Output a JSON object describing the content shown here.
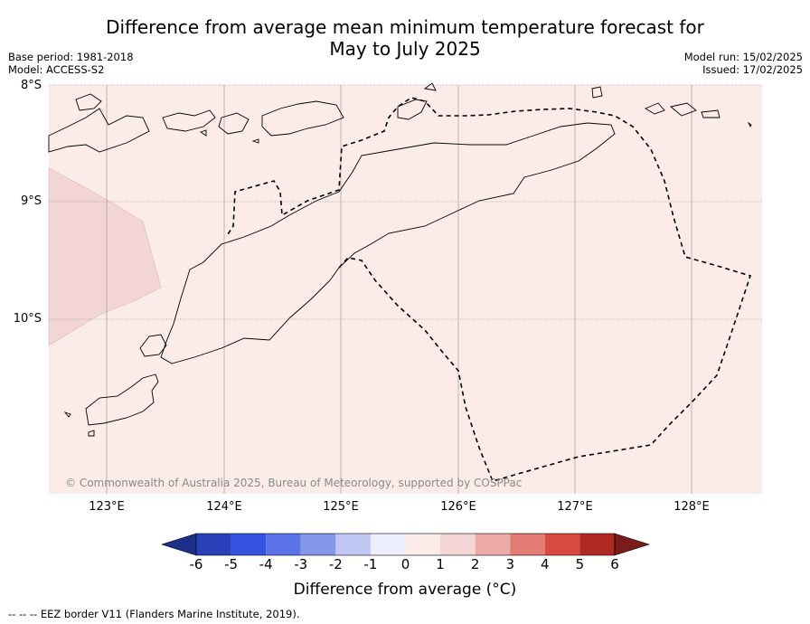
{
  "title": {
    "line1": "Difference from average mean minimum temperature forecast for",
    "line2": "May to July 2025"
  },
  "meta": {
    "base_period": "Base period: 1981-2018",
    "model": "Model: ACCESS-S2",
    "model_run": "Model run: 15/02/2025",
    "issued": "Issued: 17/02/2025"
  },
  "map": {
    "background_color": "#fbebe9",
    "warm_zone_color": "#f3d6d4",
    "latitude_labels": [
      "8°S",
      "9°S",
      "10°S"
    ],
    "longitude_labels": [
      "123°E",
      "124°E",
      "125°E",
      "126°E",
      "127°E",
      "128°E"
    ],
    "copyright": "© Commonwealth of Australia 2025, Bureau of Meteorology, supported by COSPPac"
  },
  "colorbar": {
    "ticks": [
      "-6",
      "-5",
      "-4",
      "-3",
      "-2",
      "-1",
      "0",
      "1",
      "2",
      "3",
      "4",
      "5",
      "6"
    ],
    "colors": [
      "#1e2f8a",
      "#2941b8",
      "#3352e0",
      "#5a73e6",
      "#8497ea",
      "#bfc7f2",
      "#eceffb",
      "#fbebe9",
      "#f3d6d4",
      "#ecaaa6",
      "#e37d74",
      "#d84a3f",
      "#b02a22",
      "#7a1c18"
    ],
    "title": "Difference from average (°C)"
  },
  "footnote": "-- -- -- EEZ border V11 (Flanders Marine Institute, 2019)."
}
